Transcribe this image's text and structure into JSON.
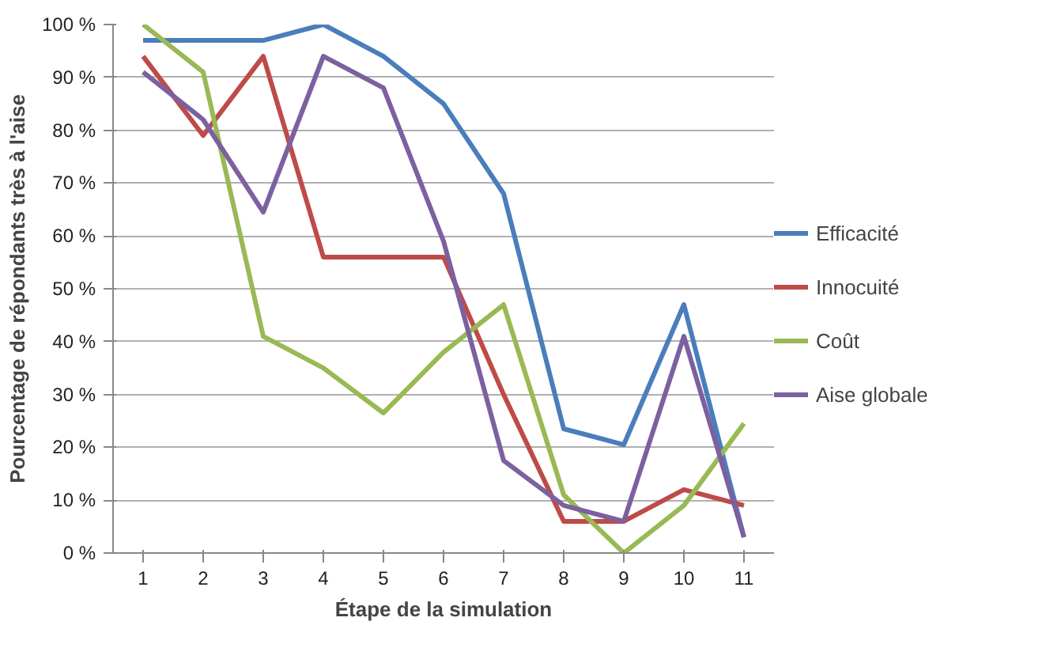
{
  "chart_data": {
    "type": "line",
    "xlabel": "Étape de la simulation",
    "ylabel": "Pourcentage de répondants très à l'aise",
    "categories": [
      "1",
      "2",
      "3",
      "4",
      "5",
      "6",
      "7",
      "8",
      "9",
      "10",
      "11"
    ],
    "series": [
      {
        "name": "Efficacité",
        "color": "#4a7ebb",
        "values": [
          97,
          97,
          97,
          100,
          94,
          85,
          68,
          23.5,
          20.5,
          47,
          3
        ]
      },
      {
        "name": "Innocuité",
        "color": "#be4b48",
        "values": [
          94,
          79,
          94,
          56,
          56,
          56,
          30,
          6,
          6,
          12,
          9
        ]
      },
      {
        "name": "Coût",
        "color": "#98b954",
        "values": [
          100,
          91,
          41,
          35,
          26.5,
          38,
          47,
          11,
          0,
          9,
          24.5
        ]
      },
      {
        "name": "Aise globale",
        "color": "#7d60a0",
        "values": [
          91,
          82,
          64.5,
          94,
          88,
          59,
          17.5,
          9,
          6,
          41,
          3
        ]
      }
    ],
    "ylim": [
      0,
      100
    ],
    "yticks": [
      {
        "value": 0,
        "label": "0 %"
      },
      {
        "value": 10,
        "label": "10 %"
      },
      {
        "value": 20,
        "label": "20 %"
      },
      {
        "value": 30,
        "label": "30 %"
      },
      {
        "value": 40,
        "label": "40 %"
      },
      {
        "value": 50,
        "label": "50 %"
      },
      {
        "value": 60,
        "label": "60 %"
      },
      {
        "value": 70,
        "label": "70 %"
      },
      {
        "value": 80,
        "label": "80 %"
      },
      {
        "value": 90,
        "label": "90 %"
      },
      {
        "value": 100,
        "label": "100 %"
      }
    ],
    "grid": "y",
    "legend": "right",
    "marker": "none",
    "line_style": "solid"
  }
}
